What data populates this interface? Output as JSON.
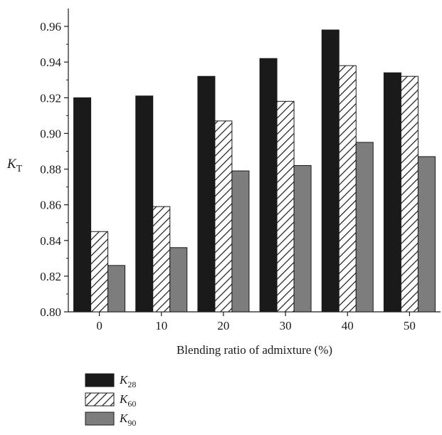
{
  "chart_data": {
    "type": "bar",
    "xlabel": "Blending ratio of admixture (%)",
    "ylabel_main": "K",
    "ylabel_sub": "T",
    "categories": [
      "0",
      "10",
      "20",
      "30",
      "40",
      "50"
    ],
    "ylim": [
      0.8,
      0.97
    ],
    "yticks": [
      "0.80",
      "0.82",
      "0.84",
      "0.86",
      "0.88",
      "0.90",
      "0.92",
      "0.94",
      "0.96"
    ],
    "grid": false,
    "legend_position": "bottom-left",
    "series": [
      {
        "name_main": "K",
        "name_sub": "28",
        "fill": "#1a1a1a",
        "pattern": "solid",
        "values": [
          0.92,
          0.921,
          0.932,
          0.942,
          0.958,
          0.934
        ]
      },
      {
        "name_main": "K",
        "name_sub": "60",
        "fill": "#ffffff",
        "pattern": "hatch",
        "values": [
          0.845,
          0.859,
          0.907,
          0.918,
          0.938,
          0.932
        ]
      },
      {
        "name_main": "K",
        "name_sub": "90",
        "fill": "#7d7d7d",
        "pattern": "solid",
        "values": [
          0.826,
          0.836,
          0.879,
          0.882,
          0.895,
          0.887
        ]
      }
    ]
  }
}
